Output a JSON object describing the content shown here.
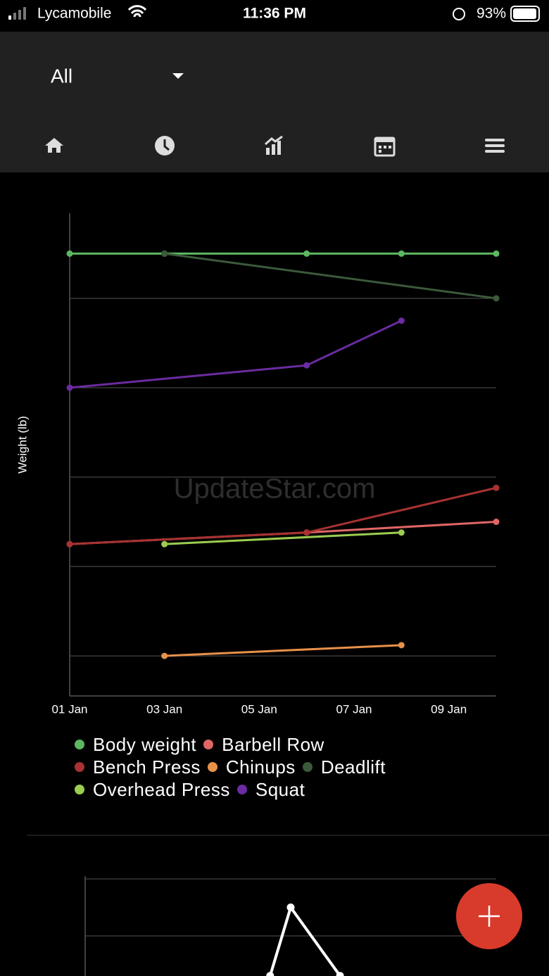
{
  "status_bar": {
    "carrier": "Lycamobile",
    "time": "11:36 PM",
    "battery": "93%"
  },
  "header": {
    "filter": "All"
  },
  "watermark": "UpdateStar.com",
  "chart_data": [
    {
      "type": "line",
      "y_label": "Weight (lb)",
      "xlim": [
        1,
        10
      ],
      "xticks": [
        {
          "value": 1,
          "label": "01 Jan"
        },
        {
          "value": 3,
          "label": "03 Jan"
        },
        {
          "value": 5,
          "label": "05 Jan"
        },
        {
          "value": 7,
          "label": "07 Jan"
        },
        {
          "value": 9,
          "label": "09 Jan"
        }
      ],
      "ylim": [
        77.6,
        347.6
      ],
      "ygrid": [
        100,
        150,
        200,
        250,
        300
      ],
      "series": [
        {
          "name": "Body weight",
          "color": "#5cb860",
          "x": [
            1,
            3,
            6,
            8,
            10
          ],
          "values": [
            325,
            325,
            325,
            325,
            325
          ]
        },
        {
          "name": "Barbell Row",
          "color": "#e06666",
          "x": [
            1,
            6,
            10
          ],
          "values": [
            162.5,
            169,
            175
          ]
        },
        {
          "name": "Bench Press",
          "color": "#a83232",
          "x": [
            1,
            6,
            10
          ],
          "values": [
            162.5,
            169,
            194
          ]
        },
        {
          "name": "Chinups",
          "color": "#e8914a",
          "x": [
            3,
            8
          ],
          "values": [
            100,
            106
          ]
        },
        {
          "name": "Deadlift",
          "color": "#3b5a3b",
          "x": [
            3,
            10
          ],
          "values": [
            325,
            300
          ]
        },
        {
          "name": "Overhead Press",
          "color": "#9ccc50",
          "x": [
            3,
            8
          ],
          "values": [
            162.5,
            169
          ]
        },
        {
          "name": "Squat",
          "color": "#6a2ca0",
          "x": [
            1,
            6,
            8
          ],
          "values": [
            250,
            262.5,
            287.5
          ]
        }
      ]
    },
    {
      "type": "line",
      "xlim": [
        0,
        10
      ],
      "ylim": [
        0,
        2
      ],
      "ygrid": [
        1,
        2
      ],
      "series": [
        {
          "color": "#ffffff",
          "x": [
            4.5,
            5,
            6.2
          ],
          "values": [
            0.3,
            1.5,
            0.3
          ]
        }
      ]
    }
  ]
}
